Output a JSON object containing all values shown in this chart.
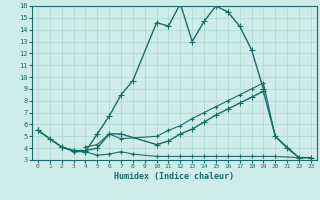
{
  "xlabel": "Humidex (Indice chaleur)",
  "bg_color": "#ceecea",
  "grid_color": "#a8d8d4",
  "line_color": "#1a6b6b",
  "xlim": [
    -0.5,
    23.5
  ],
  "ylim": [
    3,
    16
  ],
  "xticks": [
    0,
    1,
    2,
    3,
    4,
    5,
    6,
    7,
    8,
    9,
    10,
    11,
    12,
    13,
    14,
    15,
    16,
    17,
    18,
    19,
    20,
    21,
    22,
    23
  ],
  "yticks": [
    3,
    4,
    5,
    6,
    7,
    8,
    9,
    10,
    11,
    12,
    13,
    14,
    15,
    16
  ],
  "line1": {
    "x": [
      0,
      1,
      2,
      3,
      4,
      5,
      6,
      7,
      8,
      10,
      11,
      12,
      13,
      14,
      15,
      16,
      17,
      18,
      19
    ],
    "y": [
      5.5,
      4.8,
      4.1,
      3.8,
      3.7,
      5.2,
      6.7,
      8.5,
      9.7,
      14.6,
      14.3,
      16.2,
      13.0,
      14.7,
      16.0,
      15.5,
      14.3,
      12.3,
      9.0
    ]
  },
  "line2": {
    "x": [
      0,
      2,
      3,
      4,
      5,
      6,
      7,
      10,
      11,
      12,
      13,
      14,
      15,
      16,
      17,
      18,
      19,
      20,
      21,
      22,
      23
    ],
    "y": [
      5.5,
      4.1,
      3.8,
      3.8,
      4.0,
      5.2,
      5.2,
      4.3,
      4.6,
      5.2,
      5.6,
      6.2,
      6.8,
      7.3,
      7.8,
      8.3,
      8.8,
      5.0,
      4.0,
      3.2,
      3.2
    ]
  },
  "line3": {
    "x": [
      2,
      3,
      4,
      5,
      6,
      7,
      8,
      10,
      11,
      12,
      13,
      14,
      15,
      16,
      17,
      18,
      19,
      20,
      22,
      23
    ],
    "y": [
      4.1,
      3.7,
      3.7,
      3.4,
      3.5,
      3.7,
      3.5,
      3.3,
      3.3,
      3.3,
      3.3,
      3.3,
      3.3,
      3.3,
      3.3,
      3.3,
      3.3,
      3.3,
      3.2,
      3.2
    ]
  },
  "line4": {
    "x": [
      4,
      5,
      6,
      7,
      10,
      11,
      12,
      13,
      14,
      15,
      16,
      17,
      18,
      19,
      20,
      22,
      23
    ],
    "y": [
      4.1,
      4.3,
      5.2,
      4.8,
      5.0,
      5.5,
      5.9,
      6.5,
      7.0,
      7.5,
      8.0,
      8.5,
      9.0,
      9.5,
      5.0,
      3.2,
      3.2
    ]
  }
}
